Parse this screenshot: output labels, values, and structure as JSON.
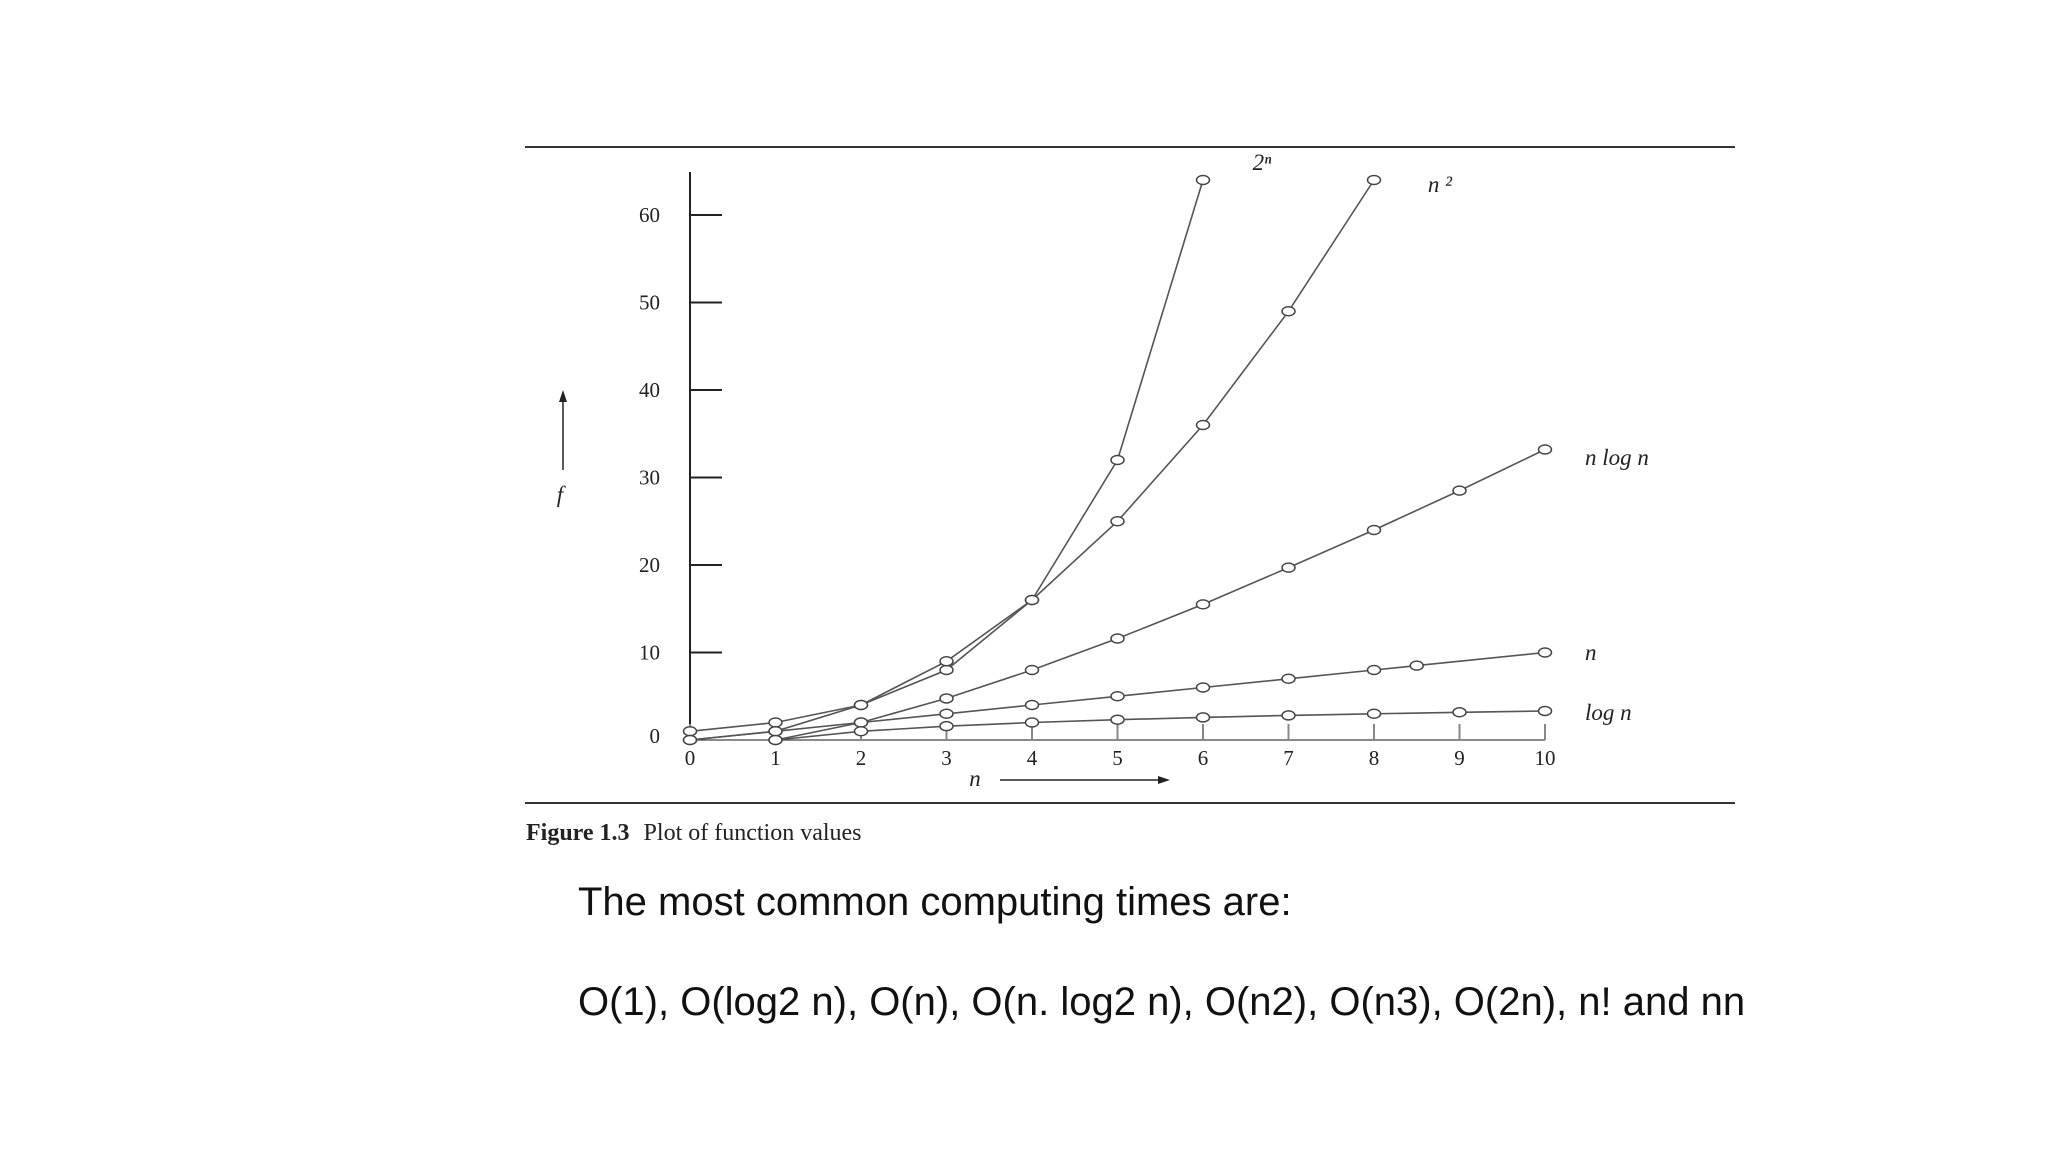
{
  "caption": {
    "label": "Figure 1.3",
    "text": "Plot of function values"
  },
  "body_text": {
    "line1": "The most common computing times are:",
    "line2": "O(1), O(log2 n), O(n), O(n. log2 n), O(n2), O(n3), O(2n), n! and nn"
  },
  "chart_data": {
    "type": "line",
    "title": "",
    "xlabel": "n",
    "ylabel": "f",
    "xlim": [
      0,
      10
    ],
    "ylim": [
      0,
      64
    ],
    "x_ticks": [
      "0",
      "1",
      "2",
      "3",
      "4",
      "5",
      "6",
      "7",
      "8",
      "9",
      "10"
    ],
    "y_ticks": [
      "0",
      "10",
      "20",
      "30",
      "40",
      "50",
      "60"
    ],
    "grid": false,
    "legend": "labels at line ends",
    "series": [
      {
        "name": "2ⁿ",
        "x": [
          0,
          1,
          2,
          3,
          4,
          5,
          6
        ],
        "y": [
          1,
          2,
          4,
          8,
          16,
          32,
          64
        ]
      },
      {
        "name": "n ²",
        "x": [
          0,
          1,
          2,
          3,
          4,
          5,
          6,
          7,
          8
        ],
        "y": [
          0,
          1,
          4,
          9,
          16,
          25,
          36,
          49,
          64
        ]
      },
      {
        "name": "n log n",
        "x": [
          1,
          2,
          3,
          4,
          5,
          6,
          7,
          8,
          9,
          10
        ],
        "y": [
          0,
          2,
          4.75,
          8,
          11.6,
          15.5,
          19.7,
          24,
          28.5,
          33.2
        ]
      },
      {
        "name": "n",
        "x": [
          0,
          1,
          2,
          3,
          4,
          5,
          6,
          7,
          8,
          8.5,
          10
        ],
        "y": [
          0,
          1,
          2,
          3,
          4,
          5,
          6,
          7,
          8,
          8.5,
          10
        ]
      },
      {
        "name": "log n",
        "x": [
          1,
          2,
          3,
          4,
          5,
          6,
          7,
          8,
          9,
          10
        ],
        "y": [
          0,
          1,
          1.58,
          2,
          2.32,
          2.58,
          2.81,
          3,
          3.17,
          3.32
        ]
      }
    ]
  }
}
